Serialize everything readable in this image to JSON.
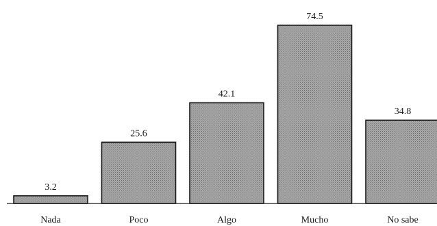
{
  "chart_data": {
    "type": "bar",
    "categories": [
      "Nada",
      "Poco",
      "Algo",
      "Mucho",
      "No sabe"
    ],
    "values": [
      3.2,
      25.6,
      42.1,
      74.5,
      34.8
    ],
    "data_labels": [
      "3.2",
      "25.6",
      "42.1",
      "74.5",
      "34.8"
    ],
    "title": "",
    "xlabel": "",
    "ylabel": "",
    "ylim": [
      0,
      74.5
    ],
    "grid": false,
    "bar_color": "#9a9a9a",
    "edge_color": "#1a1a1a"
  }
}
